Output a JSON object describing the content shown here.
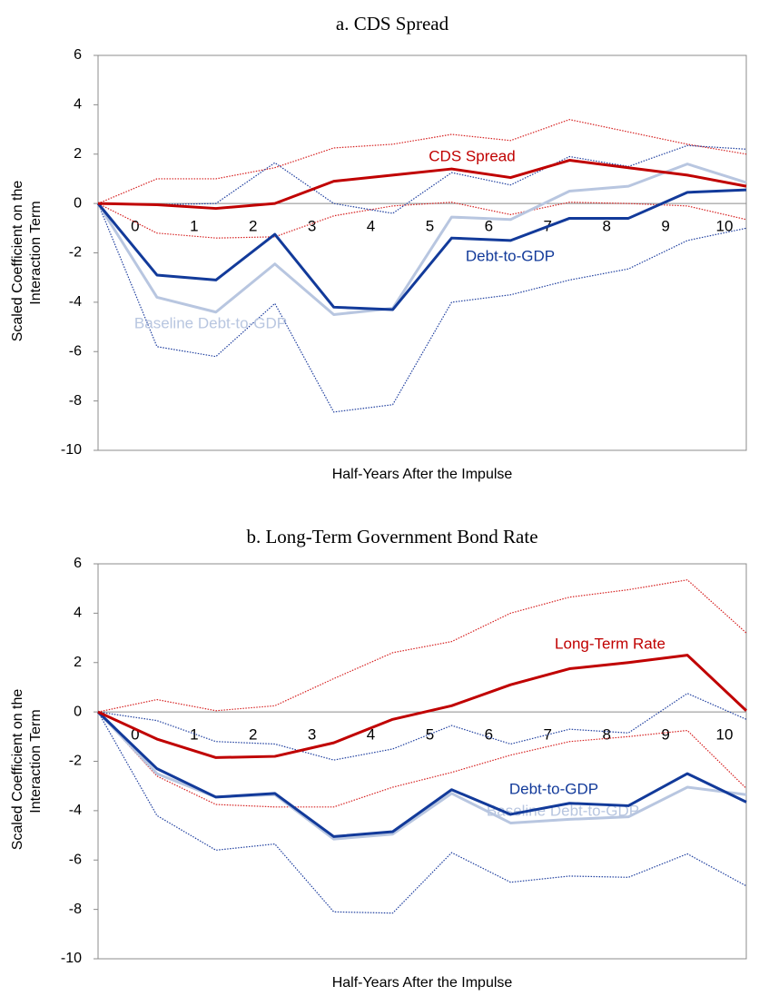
{
  "chart_data": [
    {
      "type": "line",
      "title": "a. CDS Spread",
      "x_label": "Half-Years After the Impulse",
      "y_label": [
        "Scaled Coefficient on the",
        "Interaction Term"
      ],
      "categories": [
        null,
        "0",
        "1",
        "2",
        "3",
        "4",
        "5",
        "6",
        "7",
        "8",
        "9",
        "10"
      ],
      "ylim": [
        -10,
        6
      ],
      "yticks": [
        -10,
        -8,
        -6,
        -4,
        -2,
        0,
        2,
        4,
        6
      ],
      "series": [
        {
          "color": "#d62020",
          "line_style": "dotted",
          "values": [
            0,
            1.0,
            1.0,
            1.45,
            2.25,
            2.4,
            2.8,
            2.55,
            3.4,
            2.9,
            2.4,
            2.0
          ]
        },
        {
          "color": "#d62020",
          "line_style": "dotted",
          "values": [
            0,
            -1.2,
            -1.4,
            -1.35,
            -0.5,
            -0.1,
            0.05,
            -0.45,
            0.05,
            0,
            -0.1,
            -0.65
          ]
        },
        {
          "color": "#1f3f9f",
          "line_style": "dotted",
          "values": [
            0,
            -0.05,
            0,
            1.65,
            0,
            -0.4,
            1.25,
            0.75,
            1.9,
            1.5,
            2.35,
            2.2
          ]
        },
        {
          "color": "#1f3f9f",
          "line_style": "dotted",
          "values": [
            0,
            -5.8,
            -6.2,
            -4.05,
            -8.45,
            -8.15,
            -4.0,
            -3.7,
            -3.1,
            -2.65,
            -1.5,
            -1.0
          ]
        },
        {
          "name": "Baseline Debt-to-GDP",
          "color": "#b8c6e0",
          "line_style": "solid",
          "values": [
            0,
            -3.8,
            -4.4,
            -2.45,
            -4.5,
            -4.25,
            -0.55,
            -0.65,
            0.5,
            0.7,
            1.6,
            0.85
          ]
        },
        {
          "name": "Debt-to-GDP",
          "color": "#123a9a",
          "line_style": "solid",
          "values": [
            0,
            -2.9,
            -3.1,
            -1.25,
            -4.2,
            -4.3,
            -1.4,
            -1.5,
            -0.6,
            -0.6,
            0.45,
            0.55
          ]
        },
        {
          "name": "CDS Spread",
          "color": "#c00000",
          "line_style": "solid",
          "values": [
            0,
            -0.05,
            -0.2,
            0,
            0.9,
            1.15,
            1.4,
            1.05,
            1.75,
            1.45,
            1.15,
            0.7
          ]
        }
      ]
    },
    {
      "type": "line",
      "title": "b. Long-Term Government Bond Rate",
      "x_label": "Half-Years After the Impulse",
      "y_label": [
        "Scaled Coefficient on the",
        "Interaction Term"
      ],
      "categories": [
        null,
        "0",
        "1",
        "2",
        "3",
        "4",
        "5",
        "6",
        "7",
        "8",
        "9",
        "10"
      ],
      "ylim": [
        -10,
        6
      ],
      "yticks": [
        -10,
        -8,
        -6,
        -4,
        -2,
        0,
        2,
        4,
        6
      ],
      "series": [
        {
          "color": "#d62020",
          "line_style": "dotted",
          "values": [
            0,
            0.5,
            0.05,
            0.25,
            1.35,
            2.4,
            2.85,
            4.0,
            4.65,
            4.95,
            5.35,
            3.2
          ]
        },
        {
          "color": "#d62020",
          "line_style": "dotted",
          "values": [
            0,
            -2.6,
            -3.75,
            -3.85,
            -3.85,
            -3.05,
            -2.45,
            -1.75,
            -1.2,
            -1.0,
            -0.75,
            -3.1
          ]
        },
        {
          "color": "#1f3f9f",
          "line_style": "dotted",
          "values": [
            0,
            -0.35,
            -1.2,
            -1.3,
            -1.95,
            -1.5,
            -0.55,
            -1.3,
            -0.7,
            -0.85,
            0.75,
            -0.3
          ]
        },
        {
          "color": "#1f3f9f",
          "line_style": "dotted",
          "values": [
            0,
            -4.2,
            -5.6,
            -5.35,
            -8.1,
            -8.15,
            -5.7,
            -6.9,
            -6.65,
            -6.7,
            -5.75,
            -7.05
          ]
        },
        {
          "name": "Baseline Debt-to-GDP",
          "color": "#b8c6e0",
          "line_style": "solid",
          "values": [
            0,
            -2.5,
            -3.45,
            -3.35,
            -5.15,
            -4.95,
            -3.3,
            -4.5,
            -4.35,
            -4.25,
            -3.05,
            -3.35
          ]
        },
        {
          "name": "Debt-to-GDP",
          "color": "#123a9a",
          "line_style": "solid",
          "values": [
            0,
            -2.3,
            -3.45,
            -3.3,
            -5.05,
            -4.85,
            -3.15,
            -4.15,
            -3.7,
            -3.8,
            -2.5,
            -3.65
          ]
        },
        {
          "name": "Long-Term Rate",
          "color": "#c00000",
          "line_style": "solid",
          "values": [
            0,
            -1.1,
            -1.85,
            -1.8,
            -1.25,
            -0.3,
            0.25,
            1.1,
            1.75,
            2.0,
            2.3,
            0.05
          ]
        }
      ]
    }
  ]
}
